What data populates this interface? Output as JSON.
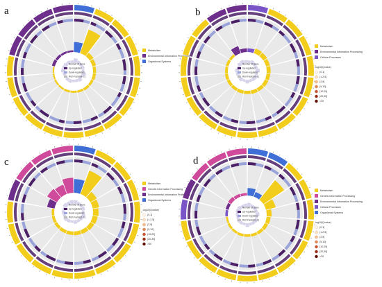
{
  "figure": {
    "colors": {
      "Metabolism": "#f2cd1c",
      "Environmental Information Processing": "#6d2e8c",
      "Organismal Systems": "#3f6fd6",
      "Cellular Processes": "#7b55c8",
      "Genetic Information Processing": "#cf4a9b",
      "up": "#4a1f66",
      "down": "#9aa3d9",
      "rich": "#d7d3ea",
      "track": "#e9e9e9",
      "ring_ticks": "#444444"
    },
    "center_legend_labels": [
      "Number of Gene",
      "Up-regulated",
      "Down-regulated",
      "Rich Factor(0~1)"
    ],
    "pvalue_title": "-log10(Qvalue)",
    "pvalue_bins": [
      "(0,1]",
      "(1,2.5]",
      "(2,5]",
      "(5,10]",
      "(10,20]",
      "(20,30]",
      ">30"
    ],
    "pvalue_colors": [
      "#fff8ef",
      "#fbe1c6",
      "#f3bf95",
      "#e2885c",
      "#c85434",
      "#9b2a1b",
      "#5e0f0a"
    ]
  },
  "chart_data": [
    {
      "panel": "a",
      "type": "circos-enrichment",
      "legend_categories": [
        "Metabolism",
        "Environmental Information Processing",
        "Organismal Systems"
      ],
      "show_pvalue_legend": false,
      "terms": [
        {
          "cat": "Organismal Systems",
          "genes": 0.4,
          "up": 0.6,
          "rich": 0.7
        },
        {
          "cat": "Metabolism",
          "genes": 1.0,
          "up": 0.35,
          "rich": 0.5
        },
        {
          "cat": "Metabolism",
          "genes": 0.18,
          "up": 0.55,
          "rich": 0.4
        },
        {
          "cat": "Metabolism",
          "genes": 0.15,
          "up": 0.4,
          "rich": 0.45
        },
        {
          "cat": "Metabolism",
          "genes": 0.12,
          "up": 0.7,
          "rich": 0.35
        },
        {
          "cat": "Metabolism",
          "genes": 0.12,
          "up": 0.5,
          "rich": 0.6
        },
        {
          "cat": "Metabolism",
          "genes": 0.1,
          "up": 0.3,
          "rich": 0.3
        },
        {
          "cat": "Metabolism",
          "genes": 0.1,
          "up": 0.6,
          "rich": 0.55
        },
        {
          "cat": "Metabolism",
          "genes": 0.09,
          "up": 0.45,
          "rich": 0.4
        },
        {
          "cat": "Metabolism",
          "genes": 0.08,
          "up": 0.5,
          "rich": 0.35
        },
        {
          "cat": "Metabolism",
          "genes": 0.08,
          "up": 0.35,
          "rich": 0.5
        },
        {
          "cat": "Metabolism",
          "genes": 0.07,
          "up": 0.65,
          "rich": 0.45
        },
        {
          "cat": "Metabolism",
          "genes": 0.07,
          "up": 0.4,
          "rich": 0.3
        },
        {
          "cat": "Metabolism",
          "genes": 0.06,
          "up": 0.55,
          "rich": 0.4
        },
        {
          "cat": "Metabolism",
          "genes": 0.06,
          "up": 0.45,
          "rich": 0.6
        },
        {
          "cat": "Environmental Information Processing",
          "genes": 0.12,
          "up": 0.4,
          "rich": 0.55
        },
        {
          "cat": "Environmental Information Processing",
          "genes": 0.1,
          "up": 0.6,
          "rich": 0.45
        },
        {
          "cat": "Environmental Information Processing",
          "genes": 0.08,
          "up": 0.5,
          "rich": 0.5
        },
        {
          "cat": "Environmental Information Processing",
          "genes": 0.07,
          "up": 0.35,
          "rich": 0.4
        }
      ]
    },
    {
      "panel": "b",
      "type": "circos-enrichment",
      "legend_categories": [
        "Metabolism",
        "Environmental Information Processing",
        "Cellular Processes"
      ],
      "show_pvalue_legend": true,
      "terms": [
        {
          "cat": "Cellular Processes",
          "genes": 0.15,
          "up": 0.5,
          "rich": 0.4
        },
        {
          "cat": "Metabolism",
          "genes": 0.2,
          "up": 0.55,
          "rich": 0.55
        },
        {
          "cat": "Metabolism",
          "genes": 0.18,
          "up": 0.4,
          "rich": 0.45
        },
        {
          "cat": "Metabolism",
          "genes": 0.16,
          "up": 0.6,
          "rich": 0.4
        },
        {
          "cat": "Metabolism",
          "genes": 0.16,
          "up": 0.45,
          "rich": 0.6
        },
        {
          "cat": "Metabolism",
          "genes": 0.15,
          "up": 0.5,
          "rich": 0.35
        },
        {
          "cat": "Metabolism",
          "genes": 0.15,
          "up": 0.35,
          "rich": 0.5
        },
        {
          "cat": "Metabolism",
          "genes": 0.14,
          "up": 0.65,
          "rich": 0.45
        },
        {
          "cat": "Metabolism",
          "genes": 0.14,
          "up": 0.4,
          "rich": 0.4
        },
        {
          "cat": "Metabolism",
          "genes": 0.13,
          "up": 0.55,
          "rich": 0.55
        },
        {
          "cat": "Metabolism",
          "genes": 0.13,
          "up": 0.45,
          "rich": 0.35
        },
        {
          "cat": "Metabolism",
          "genes": 0.12,
          "up": 0.5,
          "rich": 0.5
        },
        {
          "cat": "Metabolism",
          "genes": 0.12,
          "up": 0.6,
          "rich": 0.4
        },
        {
          "cat": "Metabolism",
          "genes": 0.12,
          "up": 0.4,
          "rich": 0.45
        },
        {
          "cat": "Metabolism",
          "genes": 0.11,
          "up": 0.55,
          "rich": 0.55
        },
        {
          "cat": "Metabolism",
          "genes": 0.11,
          "up": 0.45,
          "rich": 0.35
        },
        {
          "cat": "Metabolism",
          "genes": 0.1,
          "up": 0.5,
          "rich": 0.5
        },
        {
          "cat": "Environmental Information Processing",
          "genes": 0.3,
          "up": 0.45,
          "rich": 0.6
        },
        {
          "cat": "Environmental Information Processing",
          "genes": 0.15,
          "up": 0.55,
          "rich": 0.45
        }
      ]
    },
    {
      "panel": "c",
      "type": "circos-enrichment",
      "legend_categories": [
        "Metabolism",
        "Genetic Information Processing",
        "Environmental Information Processing",
        "Organismal Systems"
      ],
      "show_pvalue_legend": true,
      "terms": [
        {
          "cat": "Organismal Systems",
          "genes": 0.55,
          "up": 0.5,
          "rich": 0.55
        },
        {
          "cat": "Metabolism",
          "genes": 1.0,
          "up": 0.4,
          "rich": 0.45
        },
        {
          "cat": "Metabolism",
          "genes": 0.3,
          "up": 0.55,
          "rich": 0.4
        },
        {
          "cat": "Metabolism",
          "genes": 0.26,
          "up": 0.45,
          "rich": 0.5
        },
        {
          "cat": "Metabolism",
          "genes": 0.22,
          "up": 0.6,
          "rich": 0.35
        },
        {
          "cat": "Metabolism",
          "genes": 0.2,
          "up": 0.4,
          "rich": 0.55
        },
        {
          "cat": "Metabolism",
          "genes": 0.18,
          "up": 0.5,
          "rich": 0.45
        },
        {
          "cat": "Metabolism",
          "genes": 0.16,
          "up": 0.55,
          "rich": 0.4
        },
        {
          "cat": "Metabolism",
          "genes": 0.15,
          "up": 0.45,
          "rich": 0.5
        },
        {
          "cat": "Metabolism",
          "genes": 0.14,
          "up": 0.5,
          "rich": 0.35
        },
        {
          "cat": "Metabolism",
          "genes": 0.13,
          "up": 0.6,
          "rich": 0.45
        },
        {
          "cat": "Metabolism",
          "genes": 0.12,
          "up": 0.4,
          "rich": 0.55
        },
        {
          "cat": "Metabolism",
          "genes": 0.11,
          "up": 0.55,
          "rich": 0.4
        },
        {
          "cat": "Metabolism",
          "genes": 0.1,
          "up": 0.45,
          "rich": 0.5
        },
        {
          "cat": "Environmental Information Processing",
          "genes": 0.3,
          "up": 0.5,
          "rich": 0.45
        },
        {
          "cat": "Genetic Information Processing",
          "genes": 0.45,
          "up": 0.55,
          "rich": 0.6
        },
        {
          "cat": "Genetic Information Processing",
          "genes": 0.4,
          "up": 0.45,
          "rich": 0.5
        },
        {
          "cat": "Genetic Information Processing",
          "genes": 0.6,
          "up": 0.5,
          "rich": 0.55
        }
      ]
    },
    {
      "panel": "d",
      "type": "circos-enrichment",
      "legend_categories": [
        "Metabolism",
        "Genetic Information Processing",
        "Environmental Information Processing",
        "Cellular Processes",
        "Organismal Systems"
      ],
      "show_pvalue_legend": true,
      "terms": [
        {
          "cat": "Organismal Systems",
          "genes": 0.3,
          "up": 0.5,
          "rich": 0.55
        },
        {
          "cat": "Organismal Systems",
          "genes": 0.2,
          "up": 0.45,
          "rich": 0.45
        },
        {
          "cat": "Metabolism",
          "genes": 1.0,
          "up": 0.4,
          "rich": 0.5
        },
        {
          "cat": "Metabolism",
          "genes": 0.4,
          "up": 0.55,
          "rich": 0.4
        },
        {
          "cat": "Metabolism",
          "genes": 0.2,
          "up": 0.45,
          "rich": 0.55
        },
        {
          "cat": "Metabolism",
          "genes": 0.16,
          "up": 0.6,
          "rich": 0.35
        },
        {
          "cat": "Metabolism",
          "genes": 0.14,
          "up": 0.4,
          "rich": 0.5
        },
        {
          "cat": "Metabolism",
          "genes": 0.12,
          "up": 0.5,
          "rich": 0.45
        },
        {
          "cat": "Metabolism",
          "genes": 0.11,
          "up": 0.55,
          "rich": 0.4
        },
        {
          "cat": "Metabolism",
          "genes": 0.1,
          "up": 0.45,
          "rich": 0.55
        },
        {
          "cat": "Metabolism",
          "genes": 0.1,
          "up": 0.5,
          "rich": 0.35
        },
        {
          "cat": "Metabolism",
          "genes": 0.09,
          "up": 0.6,
          "rich": 0.45
        },
        {
          "cat": "Metabolism",
          "genes": 0.09,
          "up": 0.4,
          "rich": 0.5
        },
        {
          "cat": "Metabolism",
          "genes": 0.08,
          "up": 0.55,
          "rich": 0.4
        },
        {
          "cat": "Cellular Processes",
          "genes": 0.1,
          "up": 0.5,
          "rich": 0.45
        },
        {
          "cat": "Environmental Information Processing",
          "genes": 0.12,
          "up": 0.45,
          "rich": 0.55
        },
        {
          "cat": "Genetic Information Processing",
          "genes": 0.15,
          "up": 0.55,
          "rich": 0.5
        },
        {
          "cat": "Genetic Information Processing",
          "genes": 0.12,
          "up": 0.45,
          "rich": 0.4
        },
        {
          "cat": "Genetic Information Processing",
          "genes": 0.1,
          "up": 0.5,
          "rich": 0.45
        }
      ]
    }
  ]
}
